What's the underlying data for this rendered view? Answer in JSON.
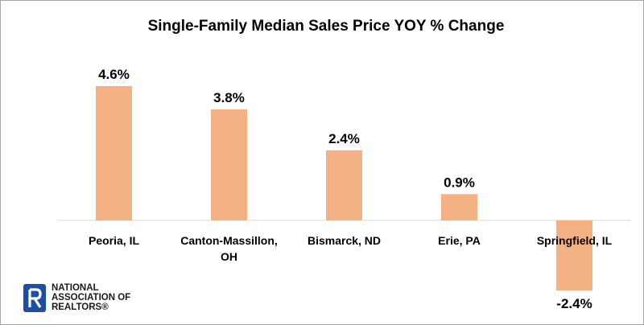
{
  "chart_data": {
    "type": "bar",
    "title": "Single-Family Median Sales Price YOY % Change",
    "categories": [
      [
        "Peoria, IL"
      ],
      [
        "Canton-Massillon,",
        "OH"
      ],
      [
        "Bismarck, ND"
      ],
      [
        "Erie, PA"
      ],
      [
        "Springfield, IL"
      ]
    ],
    "values": [
      4.6,
      3.8,
      2.4,
      0.9,
      -2.4
    ],
    "data_labels": [
      "4.6%",
      "3.8%",
      "2.4%",
      "0.9%",
      "-2.4%"
    ],
    "xlabel": "",
    "ylabel": "",
    "ylim": [
      -2.4,
      4.6
    ],
    "grid": false,
    "legend": "none",
    "bar_color": "#f4b183"
  },
  "logo": {
    "lines": [
      "NATIONAL",
      "ASSOCIATION OF",
      "REALTORS®"
    ],
    "color": "#1c4fa3"
  }
}
